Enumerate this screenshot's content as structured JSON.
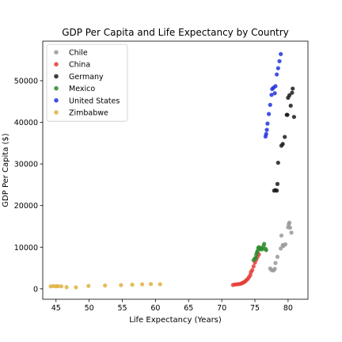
{
  "chart_data": {
    "type": "scatter",
    "title": "GDP Per Capita and Life Expectancy by Country",
    "xlabel": "Life Expectancy (Years)",
    "ylabel": "GDP Per Capita ($)",
    "xlim": [
      43,
      83
    ],
    "ylim": [
      -2500,
      59500
    ],
    "xticks": [
      45,
      50,
      55,
      60,
      65,
      70,
      75,
      80
    ],
    "yticks": [
      0,
      10000,
      20000,
      30000,
      40000,
      50000
    ],
    "legend_position": "top-left",
    "grid": false,
    "series": [
      {
        "name": "Chile",
        "color": "#999999",
        "points": [
          [
            77.3,
            4900
          ],
          [
            77.5,
            4500
          ],
          [
            77.8,
            4400
          ],
          [
            78.0,
            4800
          ],
          [
            78.1,
            6200
          ],
          [
            78.4,
            7700
          ],
          [
            78.9,
            9700
          ],
          [
            79.0,
            12800
          ],
          [
            79.2,
            10500
          ],
          [
            79.3,
            10300
          ],
          [
            79.6,
            10700
          ],
          [
            80.0,
            14800
          ],
          [
            80.1,
            15500
          ],
          [
            80.2,
            15900
          ],
          [
            80.3,
            14700
          ],
          [
            80.5,
            13500
          ]
        ]
      },
      {
        "name": "China",
        "color": "#e53935",
        "points": [
          [
            71.7,
            950
          ],
          [
            72.0,
            1050
          ],
          [
            72.3,
            1100
          ],
          [
            72.6,
            1150
          ],
          [
            72.9,
            1250
          ],
          [
            73.1,
            1400
          ],
          [
            73.3,
            1550
          ],
          [
            73.5,
            1750
          ],
          [
            73.7,
            2050
          ],
          [
            73.9,
            2350
          ],
          [
            74.1,
            2800
          ],
          [
            74.3,
            3300
          ],
          [
            74.4,
            4000
          ],
          [
            74.6,
            4500
          ],
          [
            74.8,
            5400
          ],
          [
            75.0,
            6300
          ],
          [
            75.2,
            7000
          ],
          [
            75.4,
            7700
          ],
          [
            75.6,
            8300
          ]
        ]
      },
      {
        "name": "Germany",
        "color": "#1a1a1a",
        "points": [
          [
            77.9,
            23600
          ],
          [
            78.1,
            23700
          ],
          [
            78.3,
            23600
          ],
          [
            78.4,
            25200
          ],
          [
            78.5,
            30300
          ],
          [
            79.0,
            34400
          ],
          [
            79.2,
            34800
          ],
          [
            79.5,
            36500
          ],
          [
            79.8,
            41800
          ],
          [
            79.9,
            41800
          ],
          [
            80.0,
            45900
          ],
          [
            80.2,
            46500
          ],
          [
            80.4,
            44000
          ],
          [
            80.6,
            47100
          ],
          [
            80.7,
            48100
          ],
          [
            80.9,
            41300
          ]
        ]
      },
      {
        "name": "Mexico",
        "color": "#2e8b2e",
        "points": [
          [
            74.8,
            6900
          ],
          [
            75.0,
            7300
          ],
          [
            75.1,
            7400
          ],
          [
            75.2,
            8200
          ],
          [
            75.3,
            8700
          ],
          [
            75.4,
            9100
          ],
          [
            75.5,
            9800
          ],
          [
            75.6,
            10000
          ],
          [
            75.8,
            9500
          ],
          [
            75.9,
            9700
          ],
          [
            76.0,
            9800
          ],
          [
            76.1,
            9500
          ],
          [
            76.3,
            10300
          ],
          [
            76.4,
            10800
          ],
          [
            76.6,
            9600
          ],
          [
            76.7,
            9300
          ]
        ]
      },
      {
        "name": "United States",
        "color": "#2233dd",
        "points": [
          [
            76.6,
            36600
          ],
          [
            76.7,
            37200
          ],
          [
            76.8,
            38200
          ],
          [
            76.9,
            39700
          ],
          [
            77.1,
            42000
          ],
          [
            77.3,
            44200
          ],
          [
            77.5,
            46600
          ],
          [
            77.6,
            48000
          ],
          [
            77.8,
            48300
          ],
          [
            78.0,
            47000
          ],
          [
            78.1,
            48700
          ],
          [
            78.3,
            51500
          ],
          [
            78.5,
            53000
          ],
          [
            78.7,
            54700
          ],
          [
            78.9,
            56400
          ]
        ]
      },
      {
        "name": "Zimbabwe",
        "color": "#e0b040",
        "points": [
          [
            44.2,
            600
          ],
          [
            44.6,
            650
          ],
          [
            45.0,
            620
          ],
          [
            45.3,
            640
          ],
          [
            45.8,
            600
          ],
          [
            46.6,
            400
          ],
          [
            48.0,
            360
          ],
          [
            49.9,
            700
          ],
          [
            52.4,
            800
          ],
          [
            54.8,
            900
          ],
          [
            56.5,
            1000
          ],
          [
            58.0,
            1100
          ],
          [
            59.3,
            1150
          ],
          [
            60.7,
            1100
          ]
        ]
      }
    ]
  }
}
